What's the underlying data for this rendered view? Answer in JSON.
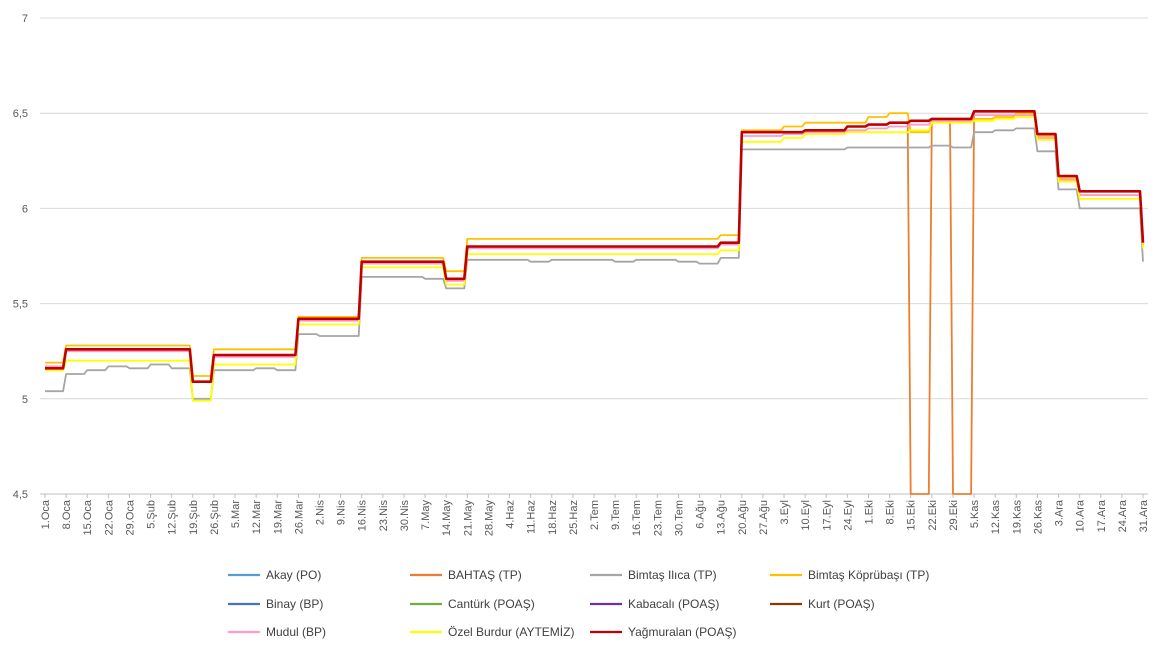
{
  "chart_data": {
    "type": "line",
    "title": "",
    "xlabel": "",
    "ylabel": "",
    "ylim": [
      4.5,
      7
    ],
    "yticks": [
      "4,5",
      "5",
      "5,5",
      "6",
      "6,5",
      "7"
    ],
    "ytick_values": [
      4.5,
      5,
      5.5,
      6,
      6.5,
      7
    ],
    "grid": "horizontal",
    "legend_position": "bottom",
    "x": [
      "1.Oca",
      "8.Oca",
      "15.Oca",
      "22.Oca",
      "29.Oca",
      "5.Şub",
      "12.Şub",
      "19.Şub",
      "26.Şub",
      "5.Mar",
      "12.Mar",
      "19.Mar",
      "26.Mar",
      "2.Nis",
      "9.Nis",
      "16.Nis",
      "23.Nis",
      "30.Nis",
      "7.May",
      "14.May",
      "21.May",
      "28.May",
      "4.Haz",
      "11.Haz",
      "18.Haz",
      "25.Haz",
      "2.Tem",
      "9.Tem",
      "16.Tem",
      "23.Tem",
      "30.Tem",
      "6.Ağu",
      "13.Ağu",
      "20.Ağu",
      "27.Ağu",
      "3.Eyl",
      "10.Eyl",
      "17.Eyl",
      "24.Eyl",
      "1.Eki",
      "8.Eki",
      "15.Eki",
      "22.Eki",
      "29.Eki",
      "5.Kas",
      "12.Kas",
      "19.Kas",
      "26.Kas",
      "3.Ara",
      "10.Ara",
      "17.Ara",
      "24.Ara",
      "31.Ara"
    ],
    "series": [
      {
        "name": "Akay (PO)",
        "color": "#5b9bd5",
        "values": [
          5.17,
          5.26,
          5.26,
          5.26,
          5.26,
          5.26,
          5.26,
          5.09,
          5.23,
          5.23,
          5.23,
          5.23,
          5.42,
          5.42,
          5.42,
          5.72,
          5.72,
          5.72,
          5.72,
          5.63,
          5.8,
          5.8,
          5.8,
          5.8,
          5.8,
          5.8,
          5.8,
          5.8,
          5.8,
          5.8,
          5.8,
          5.8,
          5.82,
          6.4,
          6.4,
          6.4,
          6.41,
          6.41,
          6.43,
          6.44,
          6.45,
          6.46,
          6.47,
          6.47,
          6.51,
          6.51,
          6.51,
          6.39,
          6.17,
          6.09,
          6.09,
          6.09,
          5.82
        ]
      },
      {
        "name": "BAHTAŞ (TP)",
        "color": "#ed7d31",
        "values": [
          5.17,
          5.26,
          5.26,
          5.26,
          5.26,
          5.26,
          5.26,
          5.09,
          5.23,
          5.23,
          5.23,
          5.23,
          5.42,
          5.42,
          5.42,
          5.72,
          5.72,
          5.72,
          5.72,
          5.63,
          5.8,
          5.8,
          5.8,
          5.8,
          5.8,
          5.8,
          5.8,
          5.8,
          5.8,
          5.8,
          5.8,
          5.8,
          5.82,
          6.4,
          6.4,
          6.4,
          6.41,
          6.41,
          6.43,
          6.44,
          6.45,
          4.5,
          6.47,
          4.5,
          6.51,
          6.51,
          6.51,
          6.39,
          6.17,
          6.09,
          6.09,
          6.09,
          5.82
        ]
      },
      {
        "name": "Bimtaş Ilıca (TP)",
        "color": "#a5a5a5",
        "values": [
          5.04,
          5.13,
          5.15,
          5.17,
          5.16,
          5.18,
          5.16,
          5.0,
          5.15,
          5.15,
          5.16,
          5.15,
          5.34,
          5.33,
          5.33,
          5.64,
          5.64,
          5.64,
          5.63,
          5.58,
          5.73,
          5.73,
          5.73,
          5.72,
          5.73,
          5.73,
          5.73,
          5.72,
          5.73,
          5.73,
          5.72,
          5.71,
          5.74,
          6.31,
          6.31,
          6.31,
          6.31,
          6.31,
          6.32,
          6.32,
          6.32,
          6.32,
          6.33,
          6.32,
          6.4,
          6.41,
          6.42,
          6.3,
          6.1,
          6.0,
          6.0,
          6.0,
          5.72
        ]
      },
      {
        "name": "Bimtaş Köprübaşı (TP)",
        "color": "#ffc000",
        "values": [
          5.19,
          5.28,
          5.28,
          5.28,
          5.28,
          5.28,
          5.28,
          5.12,
          5.26,
          5.26,
          5.26,
          5.26,
          5.43,
          5.43,
          5.43,
          5.74,
          5.74,
          5.74,
          5.74,
          5.67,
          5.84,
          5.84,
          5.84,
          5.84,
          5.84,
          5.84,
          5.84,
          5.84,
          5.84,
          5.84,
          5.84,
          5.84,
          5.86,
          6.41,
          6.41,
          6.43,
          6.45,
          6.45,
          6.45,
          6.48,
          6.5,
          6.4,
          6.46,
          6.46,
          6.47,
          6.48,
          6.5,
          6.38,
          6.16,
          6.07,
          6.07,
          6.07,
          5.81
        ]
      },
      {
        "name": "Binay (BP)",
        "color": "#4472c4",
        "values": [
          5.17,
          5.26,
          5.26,
          5.26,
          5.26,
          5.26,
          5.26,
          5.09,
          5.23,
          5.23,
          5.23,
          5.23,
          5.42,
          5.42,
          5.42,
          5.72,
          5.72,
          5.72,
          5.72,
          5.63,
          5.8,
          5.8,
          5.8,
          5.8,
          5.8,
          5.8,
          5.8,
          5.8,
          5.8,
          5.8,
          5.8,
          5.8,
          5.82,
          6.4,
          6.4,
          6.4,
          6.41,
          6.41,
          6.43,
          6.44,
          6.45,
          6.46,
          6.47,
          6.47,
          6.51,
          6.51,
          6.51,
          6.39,
          6.17,
          6.09,
          6.09,
          6.09,
          5.82
        ]
      },
      {
        "name": "Cantürk (POAŞ)",
        "color": "#70ad47",
        "values": [
          5.17,
          5.26,
          5.26,
          5.26,
          5.26,
          5.26,
          5.26,
          5.09,
          5.23,
          5.23,
          5.23,
          5.23,
          5.42,
          5.42,
          5.42,
          5.72,
          5.72,
          5.72,
          5.72,
          5.63,
          5.8,
          5.8,
          5.8,
          5.8,
          5.8,
          5.8,
          5.8,
          5.8,
          5.8,
          5.8,
          5.8,
          5.8,
          5.82,
          6.4,
          6.4,
          6.4,
          6.41,
          6.41,
          6.43,
          6.44,
          6.45,
          6.46,
          6.47,
          6.47,
          6.51,
          6.51,
          6.51,
          6.39,
          6.17,
          6.09,
          6.09,
          6.09,
          5.82
        ]
      },
      {
        "name": "Kabacalı (POAŞ)",
        "color": "#7030a0",
        "values": [
          5.17,
          5.26,
          5.26,
          5.26,
          5.26,
          5.26,
          5.26,
          5.09,
          5.23,
          5.23,
          5.23,
          5.23,
          5.42,
          5.42,
          5.42,
          5.72,
          5.72,
          5.72,
          5.72,
          5.63,
          5.8,
          5.8,
          5.8,
          5.8,
          5.8,
          5.8,
          5.8,
          5.8,
          5.8,
          5.8,
          5.8,
          5.8,
          5.82,
          6.4,
          6.4,
          6.4,
          6.41,
          6.41,
          6.43,
          6.44,
          6.45,
          6.46,
          6.47,
          6.47,
          6.51,
          6.51,
          6.51,
          6.39,
          6.17,
          6.09,
          6.09,
          6.09,
          5.82
        ]
      },
      {
        "name": "Kurt (POAŞ)",
        "color": "#843c0c",
        "values": [
          5.17,
          5.26,
          5.26,
          5.26,
          5.26,
          5.26,
          5.26,
          5.09,
          5.23,
          5.23,
          5.23,
          5.23,
          5.42,
          5.42,
          5.42,
          5.72,
          5.72,
          5.72,
          5.72,
          5.63,
          5.8,
          5.8,
          5.8,
          5.8,
          5.8,
          5.8,
          5.8,
          5.8,
          5.8,
          5.8,
          5.8,
          5.8,
          5.82,
          6.4,
          6.4,
          6.4,
          6.41,
          6.41,
          6.43,
          6.44,
          6.45,
          6.46,
          6.47,
          6.47,
          6.51,
          6.51,
          6.51,
          6.39,
          6.17,
          6.09,
          6.09,
          6.09,
          5.82
        ]
      },
      {
        "name": "Mudul (BP)",
        "color": "#ff99cc",
        "values": [
          5.17,
          5.25,
          5.25,
          5.25,
          5.25,
          5.25,
          5.25,
          5.09,
          5.22,
          5.22,
          5.22,
          5.22,
          5.41,
          5.41,
          5.41,
          5.71,
          5.71,
          5.71,
          5.71,
          5.62,
          5.79,
          5.79,
          5.79,
          5.79,
          5.79,
          5.79,
          5.79,
          5.79,
          5.79,
          5.79,
          5.79,
          5.79,
          5.81,
          6.38,
          6.38,
          6.39,
          6.4,
          6.4,
          6.41,
          6.42,
          6.43,
          6.44,
          6.46,
          6.46,
          6.49,
          6.49,
          6.49,
          6.37,
          6.15,
          6.07,
          6.07,
          6.07,
          5.8
        ]
      },
      {
        "name": "Özel Burdur (AYTEMİZ)",
        "color": "#ffff00",
        "values": [
          5.15,
          5.2,
          5.2,
          5.2,
          5.2,
          5.2,
          5.2,
          4.99,
          5.18,
          5.18,
          5.18,
          5.18,
          5.39,
          5.39,
          5.39,
          5.69,
          5.69,
          5.69,
          5.69,
          5.6,
          5.76,
          5.76,
          5.76,
          5.76,
          5.76,
          5.76,
          5.76,
          5.76,
          5.76,
          5.76,
          5.76,
          5.76,
          5.78,
          6.35,
          6.35,
          6.37,
          6.39,
          6.39,
          6.4,
          6.4,
          6.4,
          6.41,
          6.45,
          6.45,
          6.46,
          6.47,
          6.48,
          6.36,
          6.14,
          6.05,
          6.05,
          6.05,
          5.79
        ]
      },
      {
        "name": "Yağmuralan (POAŞ)",
        "color": "#c00000",
        "values": [
          5.16,
          5.26,
          5.26,
          5.26,
          5.26,
          5.26,
          5.26,
          5.09,
          5.23,
          5.23,
          5.23,
          5.23,
          5.42,
          5.42,
          5.42,
          5.72,
          5.72,
          5.72,
          5.72,
          5.63,
          5.8,
          5.8,
          5.8,
          5.8,
          5.8,
          5.8,
          5.8,
          5.8,
          5.8,
          5.8,
          5.8,
          5.8,
          5.82,
          6.4,
          6.4,
          6.4,
          6.41,
          6.41,
          6.43,
          6.44,
          6.45,
          6.46,
          6.47,
          6.47,
          6.51,
          6.51,
          6.51,
          6.39,
          6.17,
          6.09,
          6.09,
          6.09,
          5.82
        ]
      }
    ]
  }
}
